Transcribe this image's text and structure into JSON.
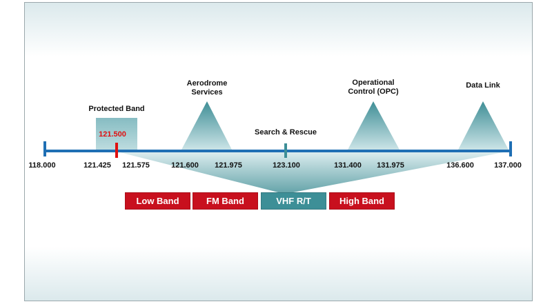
{
  "start_freq": "118.000",
  "end_freq": "137.000",
  "protected": {
    "label": "Protected Band",
    "center": "121.500",
    "low": "121.425",
    "high": "121.575"
  },
  "aerodrome": {
    "label_1": "Aerodrome",
    "label_2": "Services",
    "low": "121.600",
    "high": "121.975"
  },
  "search_rescue": {
    "label": "Search & Rescue",
    "freq": "123.100"
  },
  "opc": {
    "label_1": "Operational",
    "label_2": "Control (OPC)",
    "low": "131.400",
    "high": "131.975"
  },
  "data_link": {
    "label": "Data Link",
    "low": "136.600"
  },
  "bands": [
    "Low Band",
    "FM Band",
    "VHF R/T",
    "High Band"
  ],
  "colors": {
    "axis": "#1f6fb4",
    "teal": "#3d8f97",
    "red_band": "#c8101e",
    "marker": "#e01010"
  }
}
